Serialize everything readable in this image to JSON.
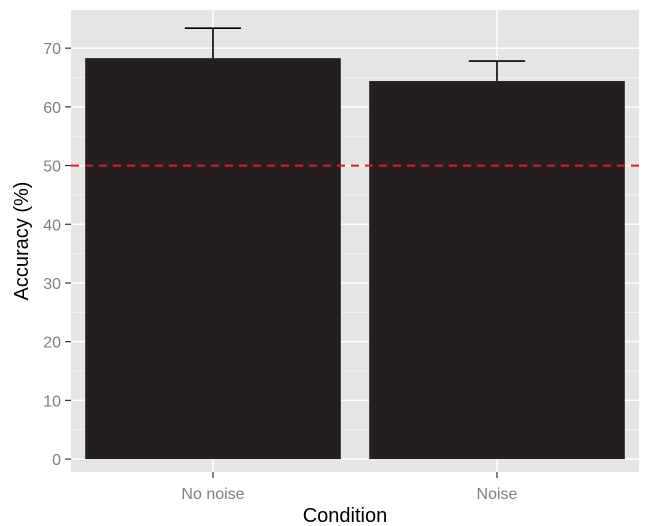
{
  "chart_data": {
    "type": "bar",
    "title": "",
    "xlabel": "Condition",
    "ylabel": "Accuracy (%)",
    "categories": [
      "No noise",
      "Noise"
    ],
    "values": [
      68.3,
      64.4
    ],
    "error_upper": [
      73.4,
      67.8
    ],
    "ylim": [
      -2.2,
      76.5
    ],
    "yticks": [
      0,
      10,
      20,
      30,
      40,
      50,
      60,
      70
    ],
    "reference_line": {
      "y": 50,
      "style": "dashed",
      "color": "#e41a1c"
    },
    "grid": true,
    "legend": "none",
    "colors": {
      "bar": "#231f20",
      "panel_background": "#e5e5e5",
      "grid": "#ffffff",
      "tick_label": "#7f7f7f"
    }
  }
}
